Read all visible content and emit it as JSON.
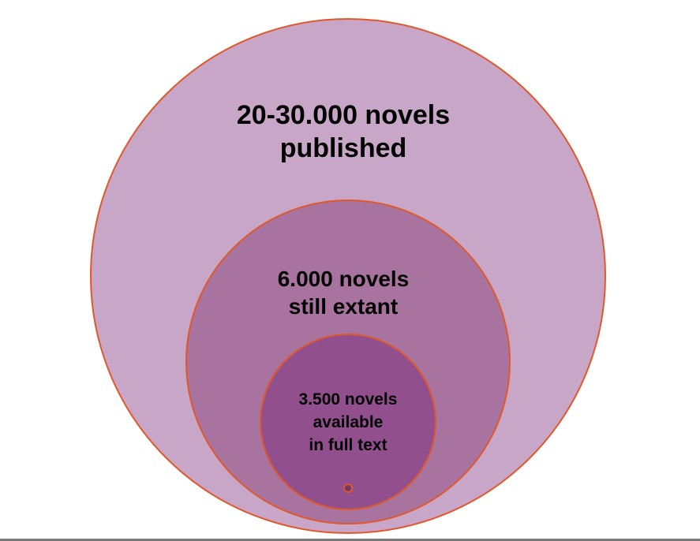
{
  "diagram": {
    "outer_circle": {
      "lines": [
        "20-30.000 novels",
        "published"
      ],
      "fill": "#c8a6c8",
      "stroke": "#e0582a"
    },
    "middle_circle": {
      "lines": [
        "6.000 novels",
        "still extant"
      ],
      "fill": "#a8739f",
      "stroke": "#e0582a"
    },
    "inner_circle": {
      "lines": [
        "3.500 novels",
        "available",
        "in full text"
      ],
      "fill": "#914f8d",
      "stroke": "#e0582a"
    },
    "center_dot": {
      "fill": "#6d3a6a",
      "stroke": "#e0582a"
    }
  }
}
